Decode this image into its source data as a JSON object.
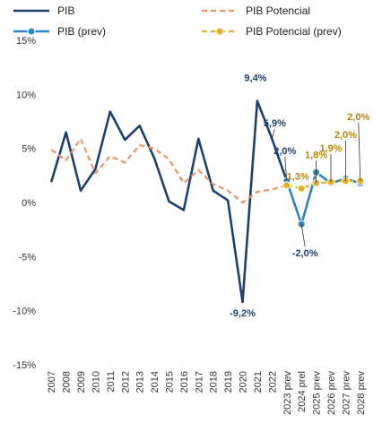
{
  "chart_data": {
    "type": "line",
    "categories": [
      "2007",
      "2008",
      "2009",
      "2010",
      "2011",
      "2012",
      "2013",
      "2014",
      "2015",
      "2016",
      "2017",
      "2018",
      "2019",
      "2020",
      "2021",
      "2022",
      "2023 prev",
      "2024 prel",
      "2025 prev",
      "2026 prev",
      "2027 prev",
      "2028 prev"
    ],
    "ylim": [
      -15,
      15
    ],
    "yticks": [
      "15%",
      "10%",
      "5%",
      "0%",
      "-5%",
      "-10%",
      "-15%"
    ],
    "ytick_values": [
      15,
      10,
      5,
      0,
      -5,
      -10,
      -15
    ],
    "series": [
      {
        "name": "PIB",
        "color": "#1f3f6e",
        "style": "solid",
        "values": [
          1.9,
          6.5,
          1.1,
          3.1,
          8.4,
          5.8,
          7.1,
          4.1,
          0.1,
          -0.7,
          5.9,
          1.1,
          0.2,
          -9.2,
          9.4,
          5.9,
          2.0,
          null,
          null,
          null,
          null,
          null
        ]
      },
      {
        "name": "PIB Potencial",
        "color": "#e8956a",
        "style": "dashed",
        "values": [
          4.9,
          3.9,
          5.9,
          2.7,
          4.3,
          3.7,
          5.3,
          5.0,
          4.0,
          1.8,
          3.0,
          1.7,
          1.1,
          0.0,
          1.0,
          1.2,
          1.6,
          null,
          null,
          null,
          null,
          null
        ]
      },
      {
        "name": "PIB (prev)",
        "color": "#2e86c1",
        "style": "solid",
        "marker": "circle",
        "values": [
          null,
          null,
          null,
          null,
          null,
          null,
          null,
          null,
          null,
          null,
          null,
          null,
          null,
          null,
          null,
          null,
          2.0,
          -2.0,
          2.8,
          1.8,
          2.2,
          1.8
        ]
      },
      {
        "name": "PIB Potencial (prev)",
        "color": "#e3b021",
        "style": "dashed",
        "marker": "circle",
        "values": [
          null,
          null,
          null,
          null,
          null,
          null,
          null,
          null,
          null,
          null,
          null,
          null,
          null,
          null,
          null,
          null,
          1.6,
          1.3,
          1.8,
          1.9,
          2.0,
          2.0
        ]
      }
    ],
    "annotations": [
      {
        "text": "9,4%",
        "x": "2021",
        "y": 9.4,
        "color": "#1f3f6e"
      },
      {
        "text": "5,9%",
        "x": "2022",
        "y": 5.9,
        "color": "#1f3f6e"
      },
      {
        "text": "2,0%",
        "x": "2023 prev",
        "y": 2.0,
        "color": "#1f3f6e"
      },
      {
        "text": "-9,2%",
        "x": "2020",
        "y": -9.2,
        "color": "#1f3f6e"
      },
      {
        "text": "-2,0%",
        "x": "2024 prel",
        "y": -2.0,
        "color": "#1f3f6e"
      },
      {
        "text": "1,3%",
        "x": "2024 prel",
        "y": 1.3,
        "color": "#b8860b"
      },
      {
        "text": "1,8%",
        "x": "2025 prev",
        "y": 1.8,
        "color": "#b8860b"
      },
      {
        "text": "1,9%",
        "x": "2026 prev",
        "y": 1.9,
        "color": "#b8860b"
      },
      {
        "text": "2,0%",
        "x": "2027 prev",
        "y": 2.0,
        "color": "#b8860b"
      },
      {
        "text": "2,0%",
        "x": "2028 prev",
        "y": 2.0,
        "color": "#b8860b"
      }
    ],
    "legend": {
      "placement": "top",
      "items": [
        "PIB",
        "PIB Potencial",
        "PIB (prev)",
        "PIB Potencial (prev)"
      ]
    },
    "grid": false
  }
}
